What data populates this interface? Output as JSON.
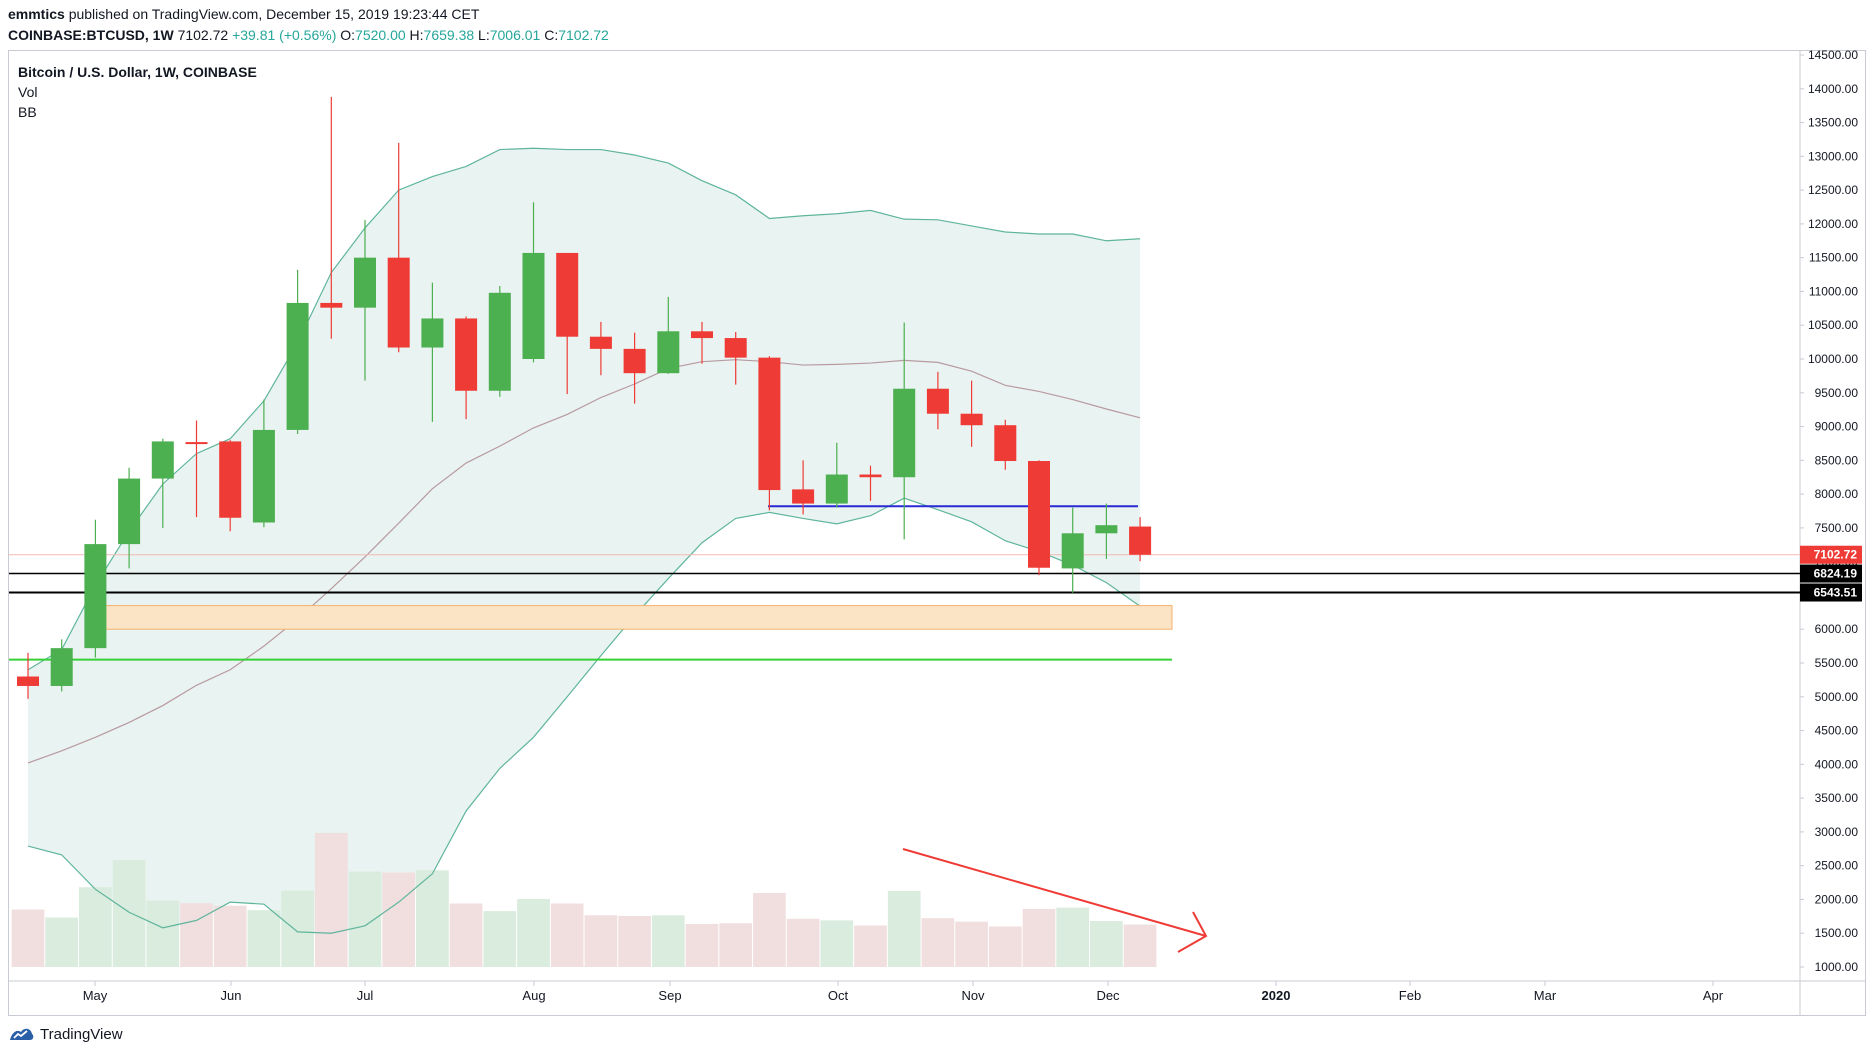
{
  "header": {
    "author": "emmtics",
    "published": "published on TradingView.com, December 15, 2019 19:23:44 CET",
    "symbol": "COINBASE:BTCUSD, 1W",
    "last": "7102.72",
    "change": "+39.81 (+0.56%)",
    "o_label": "O:",
    "o_value": "7520.00",
    "h_label": "H:",
    "h_value": "7659.38",
    "l_label": "L:",
    "l_value": "7006.01",
    "c_label": "C:",
    "c_value": "7102.72"
  },
  "legend": {
    "title": "Bitcoin / U.S. Dollar, 1W, COINBASE",
    "vol": "Vol",
    "bb": "BB"
  },
  "footer": {
    "brand": "TradingView"
  },
  "colors": {
    "up": "#4caf50",
    "down": "#ef3b36",
    "vol_up": "#d9ecdd",
    "vol_down": "#f1dfe0",
    "bb_band": "#e9f3f1",
    "bb_line": "#5fb59c",
    "basis": "#b89aa0",
    "blue_line": "#2929d6",
    "green_line": "#35d035",
    "zone_fill": "#fbe3c6",
    "zone_border": "#f6b26b",
    "last_price": "#ef3b36",
    "arrow": "#ef3b36"
  },
  "chart_data": {
    "type": "candlestick",
    "interval": "1W",
    "price_axis_ticks": [
      "14500.00",
      "14000.00",
      "13500.00",
      "13000.00",
      "12500.00",
      "12000.00",
      "11500.00",
      "11000.00",
      "10500.00",
      "10000.00",
      "9500.00",
      "9000.00",
      "8500.00",
      "8000.00",
      "7500.00",
      "7000.00",
      "6500.00",
      "6000.00",
      "5500.00",
      "5000.00",
      "4500.00",
      "4000.00",
      "3500.00",
      "3000.00",
      "2500.00",
      "2000.00",
      "1500.00",
      "1000.00"
    ],
    "time_axis_labels": [
      "May",
      "Jun",
      "Jul",
      "Aug",
      "Sep",
      "Oct",
      "Nov",
      "Dec",
      "2020",
      "Feb",
      "Mar",
      "Apr"
    ],
    "ylim": [
      950,
      14650
    ],
    "candles": [
      {
        "o": 5300,
        "h": 5650,
        "l": 4970,
        "c": 5160
      },
      {
        "o": 5160,
        "h": 5850,
        "l": 5080,
        "c": 5720
      },
      {
        "o": 5720,
        "h": 7620,
        "l": 5580,
        "c": 7260
      },
      {
        "o": 7260,
        "h": 8390,
        "l": 6900,
        "c": 8230
      },
      {
        "o": 8230,
        "h": 8820,
        "l": 7500,
        "c": 8780
      },
      {
        "o": 8770,
        "h": 9090,
        "l": 7660,
        "c": 8750
      },
      {
        "o": 8780,
        "h": 8800,
        "l": 7450,
        "c": 7650
      },
      {
        "o": 7580,
        "h": 9400,
        "l": 7510,
        "c": 8950
      },
      {
        "o": 8950,
        "h": 11320,
        "l": 8890,
        "c": 10830
      },
      {
        "o": 10830,
        "h": 13880,
        "l": 10300,
        "c": 10760
      },
      {
        "o": 10760,
        "h": 12060,
        "l": 9680,
        "c": 11500
      },
      {
        "o": 11500,
        "h": 13200,
        "l": 10100,
        "c": 10170
      },
      {
        "o": 10170,
        "h": 11130,
        "l": 9070,
        "c": 10600
      },
      {
        "o": 10600,
        "h": 10630,
        "l": 9110,
        "c": 9530
      },
      {
        "o": 9530,
        "h": 11080,
        "l": 9440,
        "c": 10980
      },
      {
        "o": 10000,
        "h": 12320,
        "l": 9950,
        "c": 11570
      },
      {
        "o": 11570,
        "h": 11570,
        "l": 9480,
        "c": 10330
      },
      {
        "o": 10330,
        "h": 10550,
        "l": 9760,
        "c": 10150
      },
      {
        "o": 10150,
        "h": 10390,
        "l": 9340,
        "c": 9790
      },
      {
        "o": 9790,
        "h": 10920,
        "l": 9780,
        "c": 10410
      },
      {
        "o": 10410,
        "h": 10550,
        "l": 9930,
        "c": 10310
      },
      {
        "o": 10310,
        "h": 10400,
        "l": 9620,
        "c": 10020
      },
      {
        "o": 10020,
        "h": 10040,
        "l": 7760,
        "c": 8060
      },
      {
        "o": 8070,
        "h": 8500,
        "l": 7700,
        "c": 7860
      },
      {
        "o": 7860,
        "h": 8760,
        "l": 7800,
        "c": 8290
      },
      {
        "o": 8290,
        "h": 8420,
        "l": 7900,
        "c": 8250
      },
      {
        "o": 8250,
        "h": 10540,
        "l": 7330,
        "c": 9560
      },
      {
        "o": 9560,
        "h": 9810,
        "l": 8960,
        "c": 9190
      },
      {
        "o": 9190,
        "h": 9680,
        "l": 8700,
        "c": 9020
      },
      {
        "o": 9020,
        "h": 9100,
        "l": 8360,
        "c": 8490
      },
      {
        "o": 8490,
        "h": 8500,
        "l": 6800,
        "c": 6910
      },
      {
        "o": 6900,
        "h": 7800,
        "l": 6540,
        "c": 7420
      },
      {
        "o": 7420,
        "h": 7860,
        "l": 7040,
        "c": 7540
      },
      {
        "o": 7520,
        "h": 7659,
        "l": 7006,
        "c": 7103
      }
    ],
    "volume": [
      1800,
      1550,
      2500,
      3350,
      2080,
      2000,
      1920,
      1780,
      2390,
      4200,
      2990,
      2960,
      3030,
      1990,
      1750,
      2130,
      1990,
      1620,
      1600,
      1620,
      1350,
      1370,
      2320,
      1510,
      1460,
      1300,
      2380,
      1530,
      1420,
      1270,
      1820,
      1860,
      1440,
      1330
    ],
    "bollinger": {
      "upper": [
        5400,
        5700,
        6650,
        7450,
        8150,
        8600,
        8820,
        9380,
        10240,
        11280,
        11940,
        12500,
        12700,
        12850,
        13100,
        13120,
        13100,
        13100,
        13020,
        12900,
        12640,
        12430,
        12080,
        12120,
        12150,
        12200,
        12070,
        12060,
        11970,
        11880,
        11850,
        11850,
        11750,
        11780
      ],
      "basis": [
        4020,
        4200,
        4400,
        4620,
        4870,
        5170,
        5400,
        5750,
        6150,
        6600,
        7070,
        7570,
        8080,
        8460,
        8710,
        8980,
        9180,
        9430,
        9630,
        9860,
        9960,
        9990,
        9960,
        9910,
        9920,
        9940,
        9980,
        9950,
        9820,
        9610,
        9520,
        9400,
        9260,
        9130
      ],
      "lower": [
        2790,
        2660,
        2150,
        1810,
        1580,
        1690,
        1960,
        1930,
        1520,
        1500,
        1610,
        1960,
        2380,
        3310,
        3940,
        4400,
        5000,
        5610,
        6200,
        6750,
        7280,
        7640,
        7730,
        7640,
        7560,
        7680,
        7940,
        7770,
        7590,
        7310,
        7150,
        6950,
        6690,
        6340
      ]
    },
    "last_price_label": "7102.72",
    "horizontal_levels": [
      {
        "label": "6824.19",
        "value": 6824.19
      },
      {
        "label": "6543.51",
        "value": 6543.51
      },
      {
        "label": "",
        "value": 7820
      },
      {
        "label": "",
        "value": 5550
      }
    ],
    "zone": {
      "from": 6000,
      "to": 6350
    },
    "annotation": "downward arrow over declining volume",
    "grid": false
  }
}
